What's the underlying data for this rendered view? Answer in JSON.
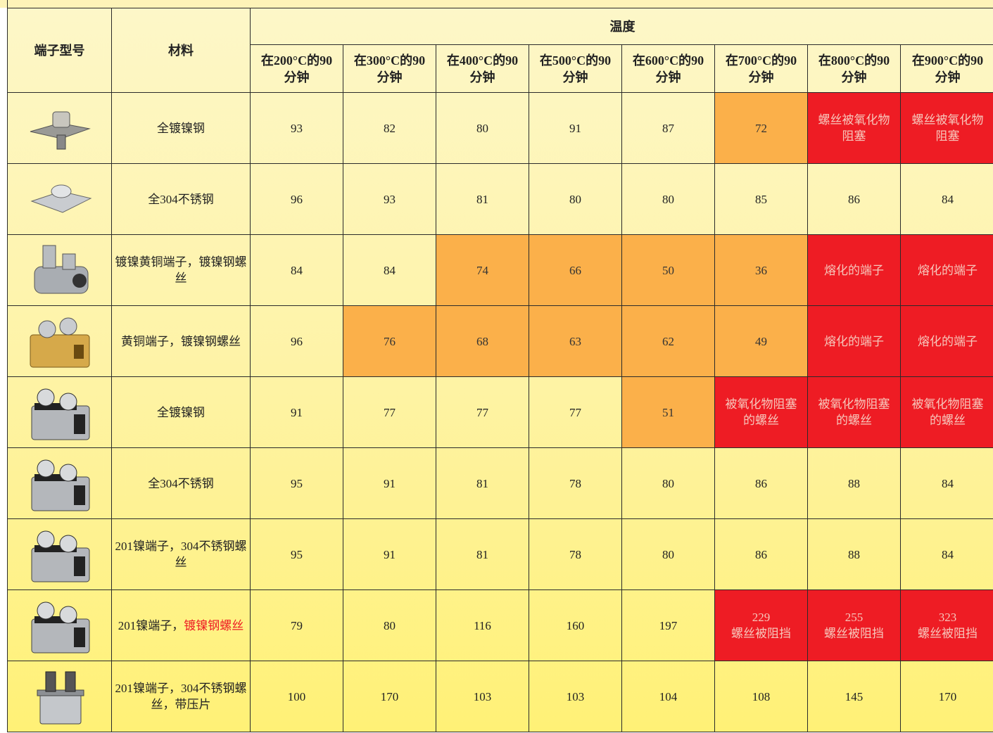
{
  "table": {
    "header": {
      "model": "端子型号",
      "material": "材料",
      "temperature": "温度",
      "columns": [
        "在200°C的90\n分钟",
        "在300°C的90\n分钟",
        "在400°C的90\n分钟",
        "在500°C的90\n分钟",
        "在600°C的90\n分钟",
        "在700°C的90\n分钟",
        "在800°C的90\n分钟",
        "在900°C的90\n分钟"
      ]
    },
    "rows": [
      {
        "material": [
          {
            "text": "全镀镍钢"
          }
        ],
        "values": [
          93,
          82,
          80,
          91,
          87,
          72,
          "螺丝被氧化物\n阻塞",
          "螺丝被氧化物\n阻塞"
        ],
        "colors": [
          null,
          null,
          null,
          null,
          null,
          {
            "fill": "#fbb04a",
            "text": "#333333"
          },
          {
            "fill": "#ee1c24",
            "text": "#f6c7bb"
          },
          {
            "fill": "#ee1c24",
            "text": "#f6c7bb"
          }
        ]
      },
      {
        "material": [
          {
            "text": "全304不锈钢"
          }
        ],
        "values": [
          96,
          93,
          81,
          80,
          80,
          85,
          86,
          84
        ],
        "colors": [
          null,
          null,
          null,
          null,
          null,
          null,
          null,
          null
        ]
      },
      {
        "material": [
          {
            "text": "镀镍黄铜端子，镀镍钢螺丝"
          }
        ],
        "values": [
          84,
          84,
          74,
          66,
          50,
          36,
          "熔化的端子",
          "熔化的端子"
        ],
        "colors": [
          null,
          null,
          {
            "fill": "#fbb04a",
            "text": "#333333"
          },
          {
            "fill": "#fbb04a",
            "text": "#333333"
          },
          {
            "fill": "#fbb04a",
            "text": "#333333"
          },
          {
            "fill": "#fbb04a",
            "text": "#333333"
          },
          {
            "fill": "#ee1c24",
            "text": "#f6c7bb"
          },
          {
            "fill": "#ee1c24",
            "text": "#f6c7bb"
          }
        ]
      },
      {
        "material": [
          {
            "text": "黄铜端子，镀镍钢螺丝"
          }
        ],
        "values": [
          96,
          76,
          68,
          63,
          62,
          49,
          "熔化的端子",
          "熔化的端子"
        ],
        "colors": [
          null,
          {
            "fill": "#fbb04a",
            "text": "#333333"
          },
          {
            "fill": "#fbb04a",
            "text": "#333333"
          },
          {
            "fill": "#fbb04a",
            "text": "#333333"
          },
          {
            "fill": "#fbb04a",
            "text": "#333333"
          },
          {
            "fill": "#fbb04a",
            "text": "#333333"
          },
          {
            "fill": "#ee1c24",
            "text": "#f6c7bb"
          },
          {
            "fill": "#ee1c24",
            "text": "#f6c7bb"
          }
        ]
      },
      {
        "material": [
          {
            "text": "全镀镍钢"
          }
        ],
        "values": [
          91,
          77,
          77,
          77,
          51,
          "被氧化物阻塞\n的螺丝",
          "被氧化物阻塞\n的螺丝",
          "被氧化物阻塞\n的螺丝"
        ],
        "colors": [
          null,
          null,
          null,
          null,
          {
            "fill": "#fbb04a",
            "text": "#333333"
          },
          {
            "fill": "#ee1c24",
            "text": "#f6c7bb"
          },
          {
            "fill": "#ee1c24",
            "text": "#f6c7bb"
          },
          {
            "fill": "#ee1c24",
            "text": "#f6c7bb"
          }
        ]
      },
      {
        "material": [
          {
            "text": "全304不锈钢"
          }
        ],
        "values": [
          95,
          91,
          81,
          78,
          80,
          86,
          88,
          84
        ],
        "colors": [
          null,
          null,
          null,
          null,
          null,
          null,
          null,
          null
        ]
      },
      {
        "material": [
          {
            "text": "201镍端子，304不锈钢螺丝"
          }
        ],
        "values": [
          95,
          91,
          81,
          78,
          80,
          86,
          88,
          84
        ],
        "colors": [
          null,
          null,
          null,
          null,
          null,
          null,
          null,
          null
        ]
      },
      {
        "material": [
          {
            "text": "201镍端子，"
          },
          {
            "text": "镀镍钢螺丝",
            "color": "#ee1c24"
          }
        ],
        "values": [
          79,
          80,
          116,
          160,
          197,
          "229\n螺丝被阻挡",
          "255\n螺丝被阻挡",
          "323\n螺丝被阻挡"
        ],
        "colors": [
          null,
          null,
          null,
          null,
          null,
          {
            "fill": "#ee1c24",
            "text": "#f6c7bb"
          },
          {
            "fill": "#ee1c24",
            "text": "#f6c7bb"
          },
          {
            "fill": "#ee1c24",
            "text": "#f6c7bb"
          }
        ]
      },
      {
        "material": [
          {
            "text": "201镍端子，304不锈钢螺丝，带压片"
          }
        ],
        "values": [
          100,
          170,
          103,
          103,
          104,
          108,
          145,
          170
        ],
        "colors": [
          null,
          null,
          null,
          null,
          null,
          null,
          null,
          null
        ]
      }
    ]
  }
}
